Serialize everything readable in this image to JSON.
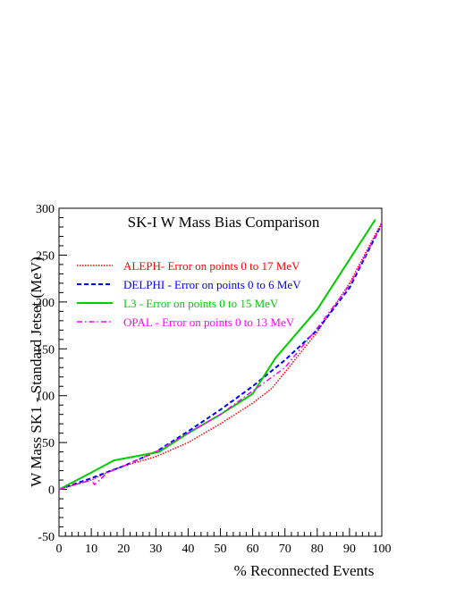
{
  "chart_data": {
    "type": "line",
    "title": "SK-I W Mass Bias Comparison",
    "xlabel": "% Reconnected Events",
    "ylabel": "W Mass SK1 - Standard Jetset (MeV)",
    "xlim": [
      0,
      100
    ],
    "ylim": [
      -50,
      300
    ],
    "xticks": [
      0,
      10,
      20,
      30,
      40,
      50,
      60,
      70,
      80,
      90,
      100
    ],
    "yticks": [
      -50,
      0,
      50,
      100,
      150,
      200,
      250,
      300
    ],
    "xtick_labels": [
      "0",
      "10",
      "20",
      "30",
      "40",
      "50",
      "60",
      "70",
      "80",
      "90",
      "100"
    ],
    "ytick_labels": [
      "-50",
      "0",
      "50",
      "100",
      "150",
      "200",
      "250",
      "300"
    ],
    "grid": false,
    "legend_position": "top-left",
    "series": [
      {
        "name": "ALEPH- Error on points 0 to 17 MeV",
        "color": "#ff0000",
        "dash": "dotted",
        "x": [
          0,
          5,
          10,
          16,
          20,
          30,
          40,
          50,
          60,
          66,
          70,
          80,
          90,
          100
        ],
        "y": [
          0,
          5,
          10,
          20,
          25,
          35,
          50,
          70,
          92,
          108,
          125,
          168,
          220,
          285
        ]
      },
      {
        "name": "DELPHI - Error on points 0 to 6 MeV",
        "color": "#0000ff",
        "dash": "dashed",
        "x": [
          0,
          10,
          20,
          30,
          40,
          50,
          60,
          70,
          80,
          90,
          100
        ],
        "y": [
          0,
          12,
          25,
          40,
          62,
          85,
          110,
          138,
          170,
          215,
          283
        ]
      },
      {
        "name": "L3 - Error on points 0 to 15 MeV",
        "color": "#00cc00",
        "dash": "solid",
        "x": [
          0,
          10,
          17,
          31,
          40,
          50,
          60,
          67,
          80,
          98
        ],
        "y": [
          0,
          18,
          31,
          40,
          60,
          80,
          102,
          140,
          192,
          288
        ]
      },
      {
        "name": "OPAL - Error on points 0 to 13 MeV",
        "color": "#ff00ff",
        "dash": "dashdot",
        "x": [
          0,
          5,
          10,
          11,
          15,
          20,
          30,
          40,
          50,
          60,
          70,
          80,
          90,
          100
        ],
        "y": [
          0,
          5,
          10,
          5,
          18,
          25,
          40,
          60,
          80,
          105,
          130,
          172,
          218,
          283
        ]
      }
    ]
  }
}
